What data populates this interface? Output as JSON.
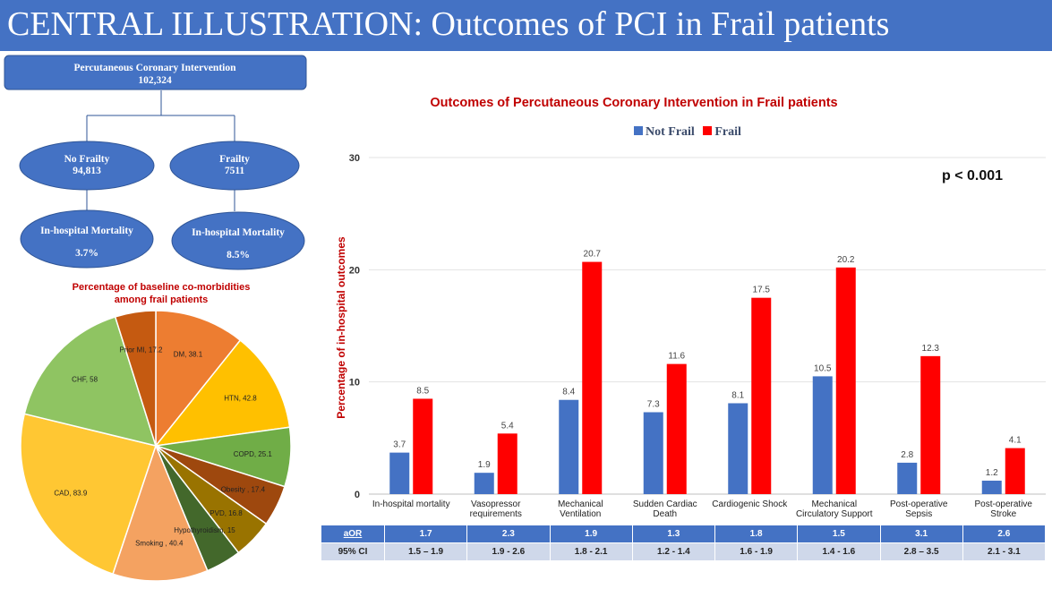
{
  "header": {
    "title": "CENTRAL ILLUSTRATION: Outcomes of PCI in Frail patients"
  },
  "flowchart": {
    "root": {
      "title": "Percutaneous Coronary Intervention",
      "count": "102,324"
    },
    "no_frailty": {
      "title": "No Frailty",
      "count": "94,813",
      "mortality_label": "In-hospital Mortality",
      "mortality_value": "3.7%"
    },
    "frailty": {
      "title": "Frailty",
      "count": "7511",
      "mortality_label": "In-hospital Mortality",
      "mortality_value": "8.5%"
    }
  },
  "colors": {
    "blue": "#4472c4",
    "red": "#ff0000",
    "dark_red": "#c00000"
  },
  "chart_data": [
    {
      "type": "pie",
      "title_line1": "Percentage of baseline co-morbidities",
      "title_line2": "among frail patients",
      "slices": [
        {
          "label": "DM, 38.1",
          "value": 38.1,
          "color": "#ed7d31"
        },
        {
          "label": "HTN, 42.8",
          "value": 42.8,
          "color": "#ffc000"
        },
        {
          "label": "COPD, 25.1",
          "value": 25.1,
          "color": "#70ad47"
        },
        {
          "label": "Obesity , 17.4",
          "value": 17.4,
          "color": "#9e480e"
        },
        {
          "label": "PVD, 16.8",
          "value": 16.8,
          "color": "#997300"
        },
        {
          "label": "Hypothyroidism, 15",
          "value": 15,
          "color": "#43682b"
        },
        {
          "label": "Smoking , 40.4",
          "value": 40.4,
          "color": "#f4a261"
        },
        {
          "label": "CAD, 83.9",
          "value": 83.9,
          "color": "#ffc733"
        },
        {
          "label": "CHF, 58",
          "value": 58,
          "color": "#8fc462"
        },
        {
          "label": "Prior MI, 17.2",
          "value": 17.2,
          "color": "#c55a11"
        }
      ]
    },
    {
      "type": "bar",
      "title": "Outcomes of Percutaneous Coronary Intervention in Frail patients",
      "ylabel": "Percentage of in-hospital outcomes",
      "ylim": [
        0,
        30
      ],
      "yticks": [
        0,
        10,
        20,
        30
      ],
      "annotation": "p < 0.001",
      "categories": [
        "In-hospital mortality",
        "Vasopressor requirements",
        "Mechanical Ventilation",
        "Sudden Cardiac Death",
        "Cardiogenic Shock",
        "Mechanical Circulatory Support",
        "Post-operative Sepsis",
        "Post-operative Stroke"
      ],
      "series": [
        {
          "name": "Not Frail",
          "color": "#4472c4",
          "values": [
            3.7,
            1.9,
            8.4,
            7.3,
            8.1,
            10.5,
            2.8,
            1.2
          ]
        },
        {
          "name": "Frail",
          "color": "#ff0000",
          "values": [
            8.5,
            5.4,
            20.7,
            11.6,
            17.5,
            20.2,
            12.3,
            4.1
          ]
        }
      ]
    }
  ],
  "table": {
    "aor_header": "aOR",
    "ci_header": "95% CI",
    "aor": [
      "1.7",
      "2.3",
      "1.9",
      "1.3",
      "1.8",
      "1.5",
      "3.1",
      "2.6"
    ],
    "ci": [
      "1.5 – 1.9",
      "1.9 - 2.6",
      "1.8 - 2.1",
      "1.2 - 1.4",
      "1.6 - 1.9",
      "1.4 - 1.6",
      "2.8 – 3.5",
      "2.1 - 3.1"
    ]
  }
}
